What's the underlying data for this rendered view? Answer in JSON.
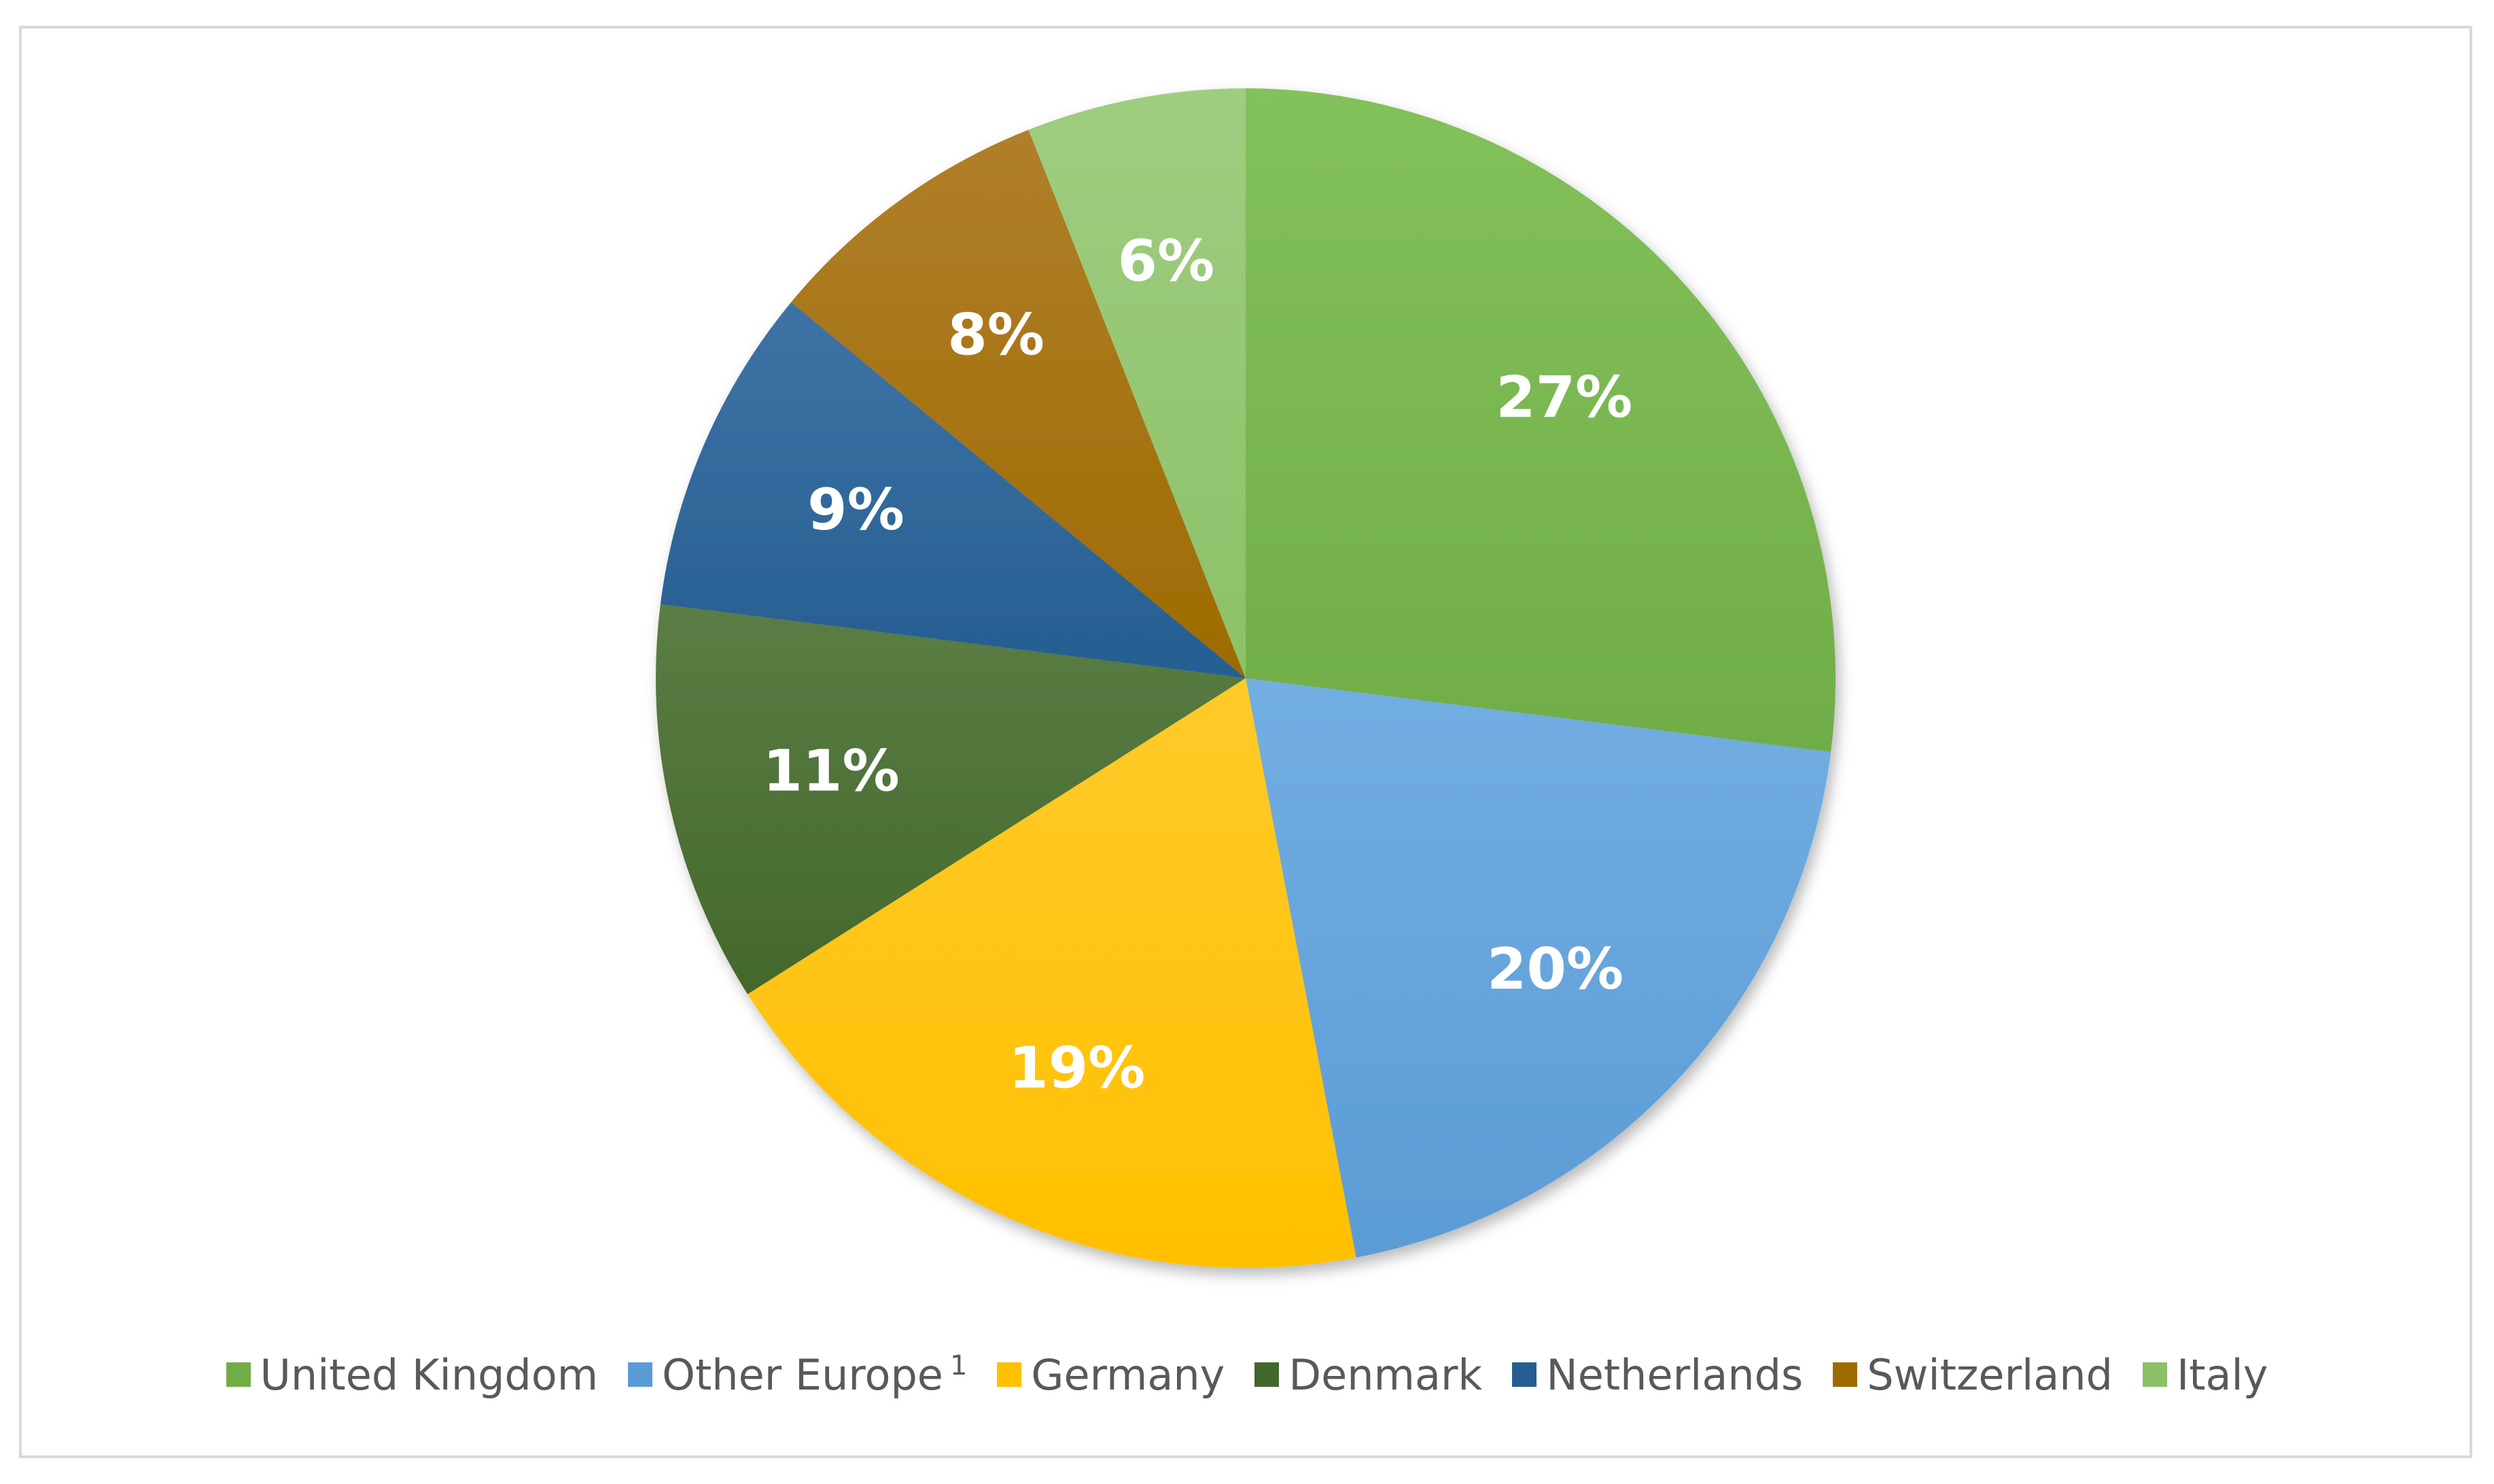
{
  "chart_data": {
    "type": "pie",
    "title": "",
    "legend_position": "bottom",
    "slices": [
      {
        "name": "United Kingdom",
        "value": 27,
        "label": "27%",
        "color": "#70ad47",
        "color_light": "#83c15b"
      },
      {
        "name": "Other Europe",
        "sup": "1",
        "value": 20,
        "label": "20%",
        "color": "#5b9bd5",
        "color_light": "#72aee2"
      },
      {
        "name": "Germany",
        "value": 19,
        "label": "19%",
        "color": "#ffc000",
        "color_light": "#ffca2a"
      },
      {
        "name": "Denmark",
        "value": 11,
        "label": "11%",
        "color": "#43682b",
        "color_light": "#5b7d45"
      },
      {
        "name": "Netherlands",
        "value": 9,
        "label": "9%",
        "color": "#255e91",
        "color_light": "#3f73a5"
      },
      {
        "name": "Switzerland",
        "value": 8,
        "label": "8%",
        "color": "#9e6b00",
        "color_light": "#b07f2a"
      },
      {
        "name": "Italy",
        "value": 6,
        "label": "6%",
        "color": "#8cc168",
        "color_light": "#9fcd80"
      }
    ]
  }
}
